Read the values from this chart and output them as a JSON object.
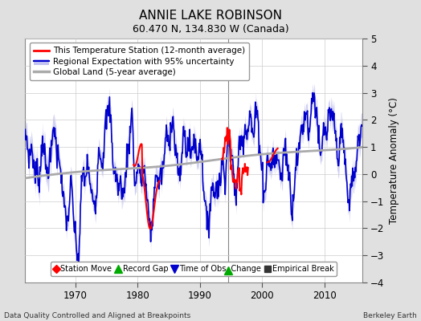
{
  "title": "ANNIE LAKE ROBINSON",
  "subtitle": "60.470 N, 134.830 W (Canada)",
  "ylabel": "Temperature Anomaly (°C)",
  "footer_left": "Data Quality Controlled and Aligned at Breakpoints",
  "footer_right": "Berkeley Earth",
  "xlim": [
    1962,
    2016
  ],
  "ylim": [
    -4,
    5
  ],
  "yticks": [
    -4,
    -3,
    -2,
    -1,
    0,
    1,
    2,
    3,
    4,
    5
  ],
  "xticks": [
    1970,
    1980,
    1990,
    2000,
    2010
  ],
  "bg_color": "#e0e0e0",
  "plot_bg_color": "#ffffff",
  "regional_color": "#0000cc",
  "regional_fill_color": "#aaaaee",
  "station_color": "#ff0000",
  "global_color": "#aaaaaa",
  "global_lw": 2.0,
  "station_lw": 1.5,
  "regional_lw": 1.2,
  "vline_x": 1994.5,
  "vline_color": "#666666",
  "green_triangle_x": 1994.5,
  "green_triangle_y": -3.55,
  "legend1_labels": [
    "This Temperature Station (12-month average)",
    "Regional Expectation with 95% uncertainty",
    "Global Land (5-year average)"
  ],
  "legend2_labels": [
    "Station Move",
    "Record Gap",
    "Time of Obs. Change",
    "Empirical Break"
  ],
  "legend2_markers": [
    "D",
    "^",
    "v",
    "s"
  ],
  "legend2_colors": [
    "#ff0000",
    "#00aa00",
    "#0000cc",
    "#333333"
  ]
}
